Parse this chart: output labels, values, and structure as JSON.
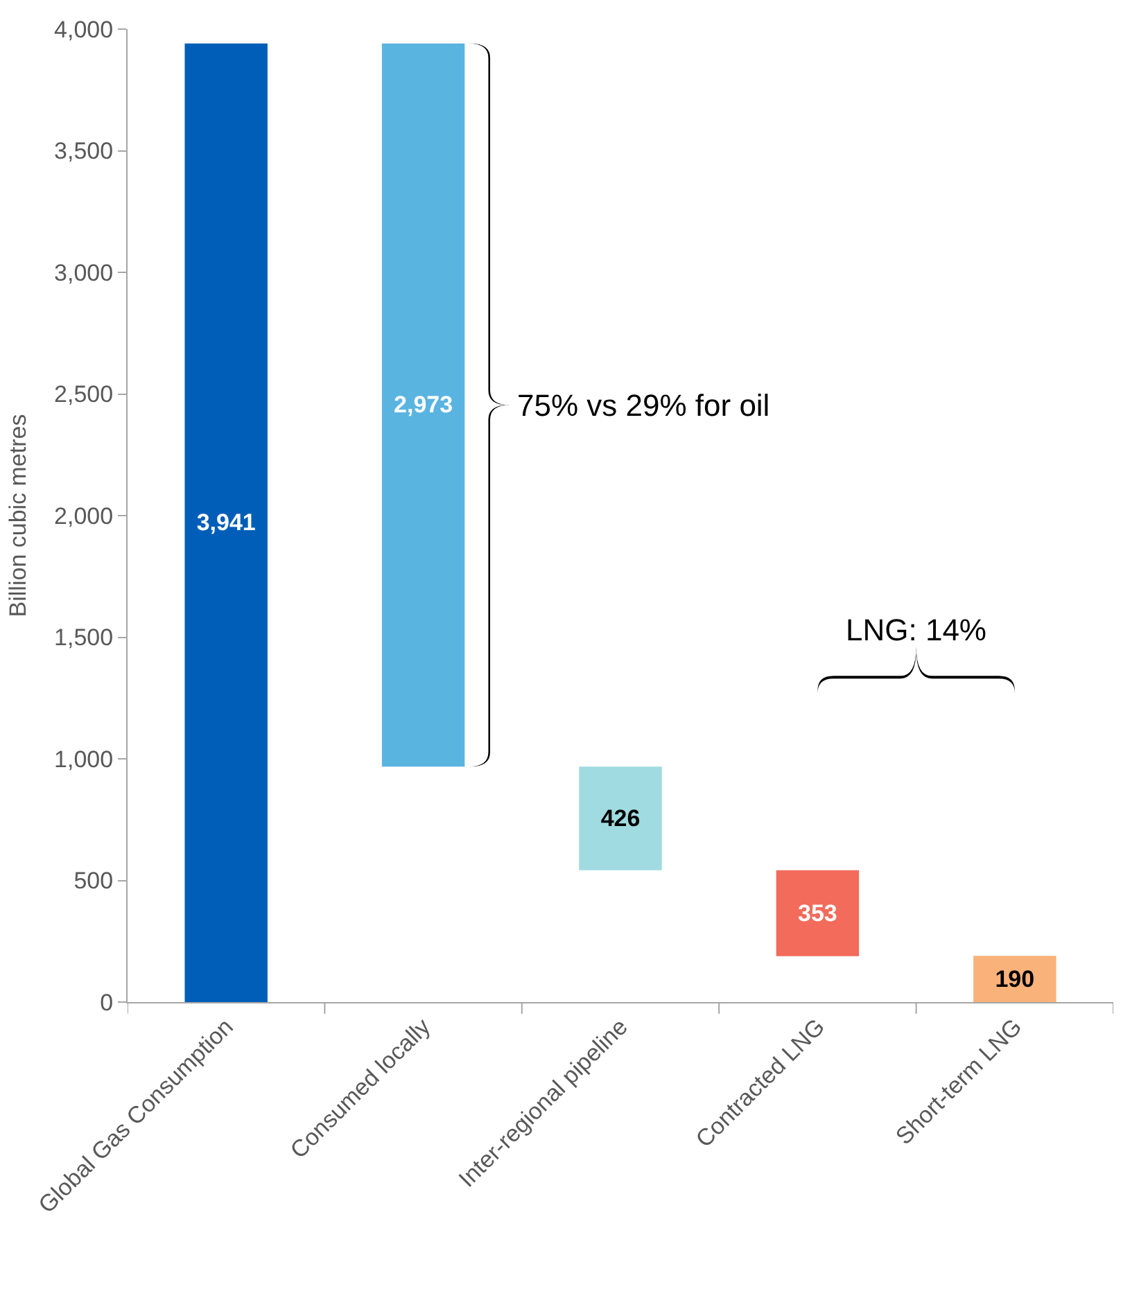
{
  "chart_data": {
    "type": "bar",
    "ylabel": "Billion cubic metres",
    "categories": [
      "Global Gas Consumption",
      "Consumed locally",
      "Inter-regional pipeline",
      "Contracted LNG",
      "Short-term LNG"
    ],
    "values": [
      3941,
      2973,
      426,
      353,
      190
    ],
    "base": [
      0,
      968,
      542,
      189,
      0
    ],
    "colors": [
      "#005eb8",
      "#5ab4e0",
      "#a0dbe1",
      "#f26b5b",
      "#f9b27a"
    ],
    "value_labels": [
      "3,941",
      "2,973",
      "426",
      "353",
      "190"
    ],
    "ylim": [
      0,
      4000
    ],
    "yticks": [
      0,
      {
        "value": 500,
        "label": "500"
      },
      {
        "value": 1000,
        "label": "1,000"
      },
      {
        "value": 1500,
        "label": "1,500"
      },
      {
        "value": 2000,
        "label": "2,000"
      },
      {
        "value": 2500,
        "label": "2,500"
      },
      {
        "value": 3000,
        "label": "3,000"
      },
      {
        "value": 3500,
        "label": "3,500"
      },
      {
        "value": 4000,
        "label": "4,000"
      }
    ],
    "annotations": [
      "75% vs 29% for oil",
      "LNG: 14%"
    ]
  }
}
